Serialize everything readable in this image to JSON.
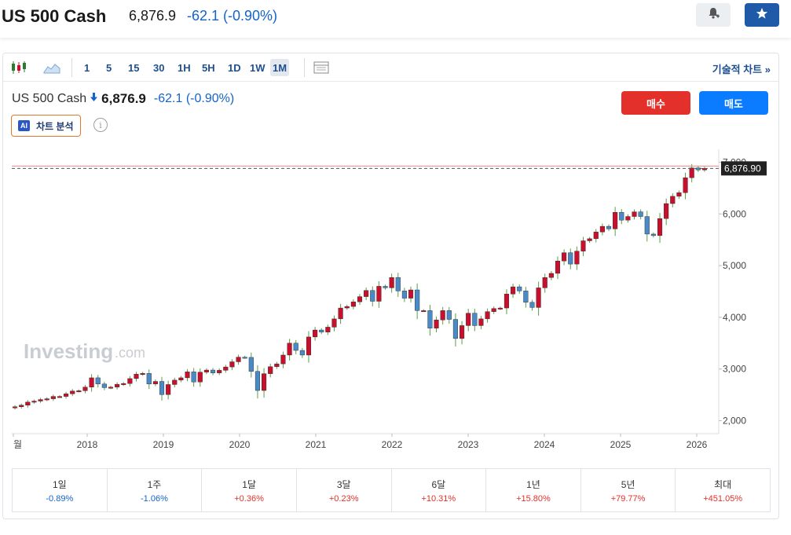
{
  "header": {
    "title": "US 500 Cash",
    "price": "6,876.9",
    "change": "-62.1 (-0.90%)"
  },
  "icons": {
    "alert": "bell-plus-icon",
    "favorite": "star-icon"
  },
  "toolbar": {
    "timeframes": [
      "1",
      "5",
      "15",
      "30",
      "1H",
      "5H",
      "1D",
      "1W",
      "1M"
    ],
    "active_timeframe": "1M",
    "technical_chart": "기술적 차트 »"
  },
  "symbol_line": {
    "name": "US 500 Cash",
    "price": "6,876.9",
    "change": "-62.1 (-0.90%)",
    "direction": "down"
  },
  "actions": {
    "buy": "매수",
    "sell": "매도"
  },
  "ai": {
    "badge": "AI",
    "label": "차트 분석"
  },
  "watermark": "Investing",
  "watermark_suffix": ".com",
  "colors": {
    "up": "#c8102e",
    "down": "#4a8bc7",
    "accent": "#1e4f8f",
    "negative": "#1463c9",
    "positive": "#e3302a"
  },
  "chart_data": {
    "type": "candlestick",
    "interval": "1M",
    "last_price_label": "6,876.90",
    "y_ticks": [
      2000,
      3000,
      4000,
      5000,
      6000,
      7000
    ],
    "y_tick_labels": [
      "2,000",
      "3,000",
      "4,000",
      "5,000",
      "6,000",
      "7,000"
    ],
    "x_tick_labels": [
      "월",
      "2018",
      "2019",
      "2020",
      "2021",
      "2022",
      "2023",
      "2024",
      "2025",
      "2026"
    ],
    "ylim": [
      1750,
      7250
    ],
    "close_series": [
      2270,
      2300,
      2360,
      2380,
      2410,
      2425,
      2470,
      2470,
      2520,
      2575,
      2580,
      2650,
      2830,
      2710,
      2640,
      2650,
      2705,
      2720,
      2815,
      2900,
      2915,
      2710,
      2760,
      2505,
      2700,
      2785,
      2830,
      2945,
      2750,
      2940,
      2980,
      2925,
      2975,
      3040,
      3140,
      3230,
      3225,
      2955,
      2585,
      2910,
      3045,
      3100,
      3270,
      3500,
      3360,
      3270,
      3620,
      3755,
      3715,
      3810,
      3970,
      4180,
      4210,
      4300,
      4400,
      4520,
      4310,
      4600,
      4570,
      4770,
      4510,
      4370,
      4530,
      4130,
      4130,
      3790,
      3950,
      4130,
      3960,
      3590,
      3840,
      4080,
      3840,
      3970,
      4110,
      4170,
      4180,
      4450,
      4590,
      4510,
      4290,
      4190,
      4570,
      4770,
      4850,
      5090,
      5250,
      5030,
      5280,
      5480,
      5520,
      5650,
      5760,
      5710,
      6030,
      5880,
      5950,
      6040,
      5950,
      5610,
      5580,
      5910,
      6200,
      6340,
      6410,
      6700,
      6890,
      6850,
      6880
    ]
  },
  "performance": [
    {
      "label": "1일",
      "value": "-0.89%",
      "sign": "neg"
    },
    {
      "label": "1주",
      "value": "-1.06%",
      "sign": "neg"
    },
    {
      "label": "1달",
      "value": "+0.36%",
      "sign": "pos"
    },
    {
      "label": "3달",
      "value": "+0.23%",
      "sign": "pos"
    },
    {
      "label": "6달",
      "value": "+10.31%",
      "sign": "pos"
    },
    {
      "label": "1년",
      "value": "+15.80%",
      "sign": "pos"
    },
    {
      "label": "5년",
      "value": "+79.77%",
      "sign": "pos"
    },
    {
      "label": "최대",
      "value": "+451.05%",
      "sign": "pos"
    }
  ]
}
